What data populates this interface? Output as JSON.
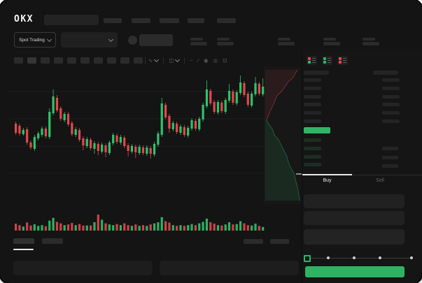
{
  "header": {
    "logo": "OKX"
  },
  "market_selector": {
    "label": "Spot Trading"
  },
  "trade_panel": {
    "buy_tab": "Buy",
    "sell_tab": "Sell"
  },
  "icons": {
    "interval": "∿",
    "chart_type": "◫",
    "overlay": "~",
    "draw": "⁄",
    "camera": "◉",
    "settings": "◎",
    "fullscreen": "⊡"
  },
  "colors": {
    "candle_green": "#2fc26b",
    "candle_red": "#e2484d",
    "orderbook_highlight": "#2eb566",
    "buy_button_green": "#2eb362",
    "grid": "#1e1e1e"
  },
  "chart_data": {
    "type": "candlestick",
    "note": "no numeric axis labels visible; values in relative chart units 0-192 estimated from pixels",
    "grid": true,
    "legend": "none",
    "candles_ohlc_as_o_h_l_c": [
      [
        115,
        118,
        99,
        102
      ],
      [
        112,
        115,
        98,
        101
      ],
      [
        100,
        109,
        98,
        106
      ],
      [
        107,
        110,
        85,
        88
      ],
      [
        88,
        91,
        78,
        81
      ],
      [
        79,
        99,
        76,
        96
      ],
      [
        94,
        104,
        91,
        101
      ],
      [
        99,
        111,
        96,
        108
      ],
      [
        108,
        111,
        94,
        97
      ],
      [
        96,
        137,
        93,
        132
      ],
      [
        130,
        164,
        127,
        154
      ],
      [
        152,
        156,
        131,
        134
      ],
      [
        137,
        140,
        119,
        122
      ],
      [
        120,
        132,
        117,
        129
      ],
      [
        129,
        132,
        111,
        114
      ],
      [
        116,
        119,
        97,
        100
      ],
      [
        99,
        110,
        96,
        107
      ],
      [
        106,
        109,
        89,
        92
      ],
      [
        94,
        97,
        77,
        84
      ],
      [
        83,
        96,
        80,
        93
      ],
      [
        92,
        95,
        77,
        80
      ],
      [
        79,
        90,
        72,
        87
      ],
      [
        86,
        89,
        70,
        76
      ],
      [
        75,
        88,
        72,
        85
      ],
      [
        84,
        87,
        67,
        74
      ],
      [
        73,
        91,
        70,
        88
      ],
      [
        87,
        102,
        84,
        99
      ],
      [
        98,
        101,
        86,
        89
      ],
      [
        88,
        99,
        85,
        96
      ],
      [
        95,
        98,
        80,
        83
      ],
      [
        84,
        87,
        68,
        76
      ],
      [
        75,
        86,
        72,
        83
      ],
      [
        82,
        85,
        66,
        74
      ],
      [
        73,
        85,
        70,
        82
      ],
      [
        81,
        84,
        70,
        73
      ],
      [
        72,
        84,
        69,
        81
      ],
      [
        80,
        83,
        65,
        72
      ],
      [
        71,
        89,
        68,
        86
      ],
      [
        85,
        104,
        82,
        101
      ],
      [
        99,
        152,
        96,
        144
      ],
      [
        142,
        145,
        121,
        124
      ],
      [
        126,
        129,
        102,
        108
      ],
      [
        107,
        119,
        104,
        116
      ],
      [
        115,
        118,
        100,
        103
      ],
      [
        102,
        114,
        99,
        111
      ],
      [
        110,
        113,
        96,
        99
      ],
      [
        98,
        112,
        95,
        109
      ],
      [
        108,
        123,
        105,
        120
      ],
      [
        119,
        122,
        105,
        108
      ],
      [
        107,
        125,
        104,
        122
      ],
      [
        121,
        145,
        118,
        142
      ],
      [
        140,
        177,
        137,
        164
      ],
      [
        162,
        165,
        141,
        144
      ],
      [
        146,
        149,
        129,
        132
      ],
      [
        131,
        149,
        128,
        146
      ],
      [
        145,
        148,
        130,
        133
      ],
      [
        132,
        152,
        129,
        149
      ],
      [
        148,
        172,
        145,
        162
      ],
      [
        161,
        164,
        142,
        145
      ],
      [
        144,
        163,
        141,
        160
      ],
      [
        159,
        184,
        156,
        174
      ],
      [
        173,
        176,
        153,
        156
      ],
      [
        158,
        161,
        139,
        142
      ],
      [
        141,
        161,
        138,
        158
      ],
      [
        157,
        182,
        154,
        173
      ],
      [
        172,
        175,
        155,
        158
      ],
      [
        157,
        180,
        154,
        168
      ]
    ],
    "volume_pct": [
      38,
      30,
      22,
      45,
      28,
      35,
      26,
      30,
      24,
      55,
      70,
      48,
      40,
      30,
      34,
      42,
      30,
      36,
      28,
      28,
      28,
      46,
      88,
      60,
      40,
      34,
      30,
      36,
      30,
      40,
      30,
      26,
      34,
      26,
      30,
      26,
      34,
      40,
      46,
      74,
      52,
      44,
      30,
      26,
      30,
      26,
      30,
      36,
      30,
      40,
      48,
      66,
      46,
      38,
      30,
      28,
      34,
      46,
      34,
      36,
      52,
      40,
      30,
      28,
      38,
      26,
      20
    ],
    "depth": {
      "orientation": "vertical, asks above mid-price, bids below, cumulative size to the left edge",
      "asks_curve": [
        [
          2,
          76
        ],
        [
          5,
          68
        ],
        [
          8,
          61
        ],
        [
          11,
          55
        ],
        [
          14,
          48
        ],
        [
          17,
          41
        ],
        [
          24,
          34
        ],
        [
          29,
          27
        ],
        [
          33,
          21
        ],
        [
          40,
          15
        ],
        [
          43,
          9
        ],
        [
          46,
          4
        ]
      ],
      "bids_curve": [
        [
          2,
          76
        ],
        [
          6,
          83
        ],
        [
          11,
          90
        ],
        [
          13,
          97
        ],
        [
          19,
          104
        ],
        [
          23,
          112
        ],
        [
          27,
          120
        ],
        [
          31,
          128
        ],
        [
          33,
          136
        ],
        [
          37,
          145
        ],
        [
          41,
          152
        ],
        [
          43,
          160
        ],
        [
          45,
          168
        ],
        [
          47,
          176
        ],
        [
          48,
          184
        ],
        [
          49,
          191
        ]
      ]
    }
  }
}
